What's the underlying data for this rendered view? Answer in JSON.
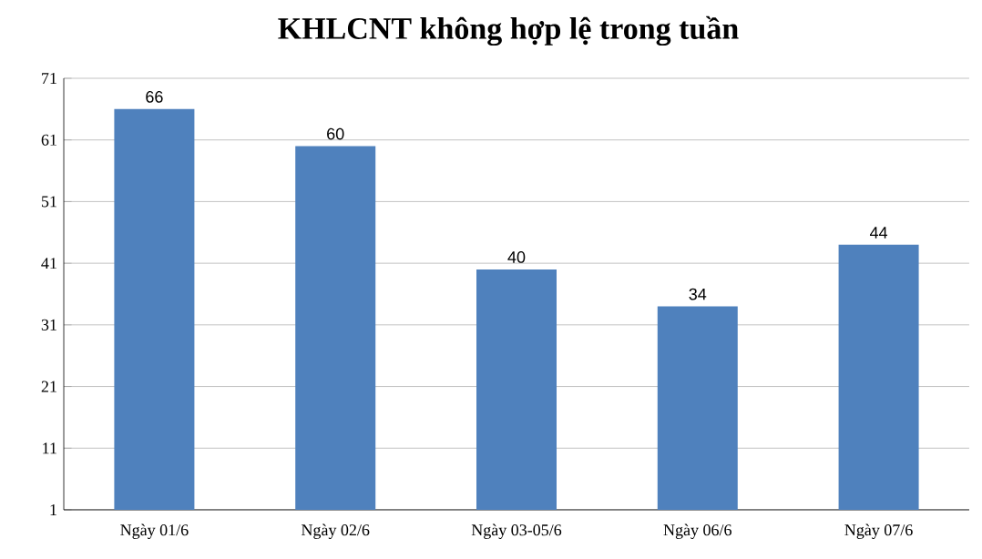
{
  "chart_data": {
    "type": "bar",
    "title": "KHLCNT không hợp lệ trong tuần",
    "categories": [
      "Ngày 01/6",
      "Ngày 02/6",
      "Ngày 03-05/6",
      "Ngày 06/6",
      "Ngày 07/6"
    ],
    "values": [
      66,
      60,
      40,
      34,
      44
    ],
    "color": "#4f81bd",
    "ylim": [
      1,
      71
    ],
    "yticks": [
      1,
      11,
      21,
      31,
      41,
      51,
      61,
      71
    ],
    "grid": "y",
    "data_labels": true
  }
}
